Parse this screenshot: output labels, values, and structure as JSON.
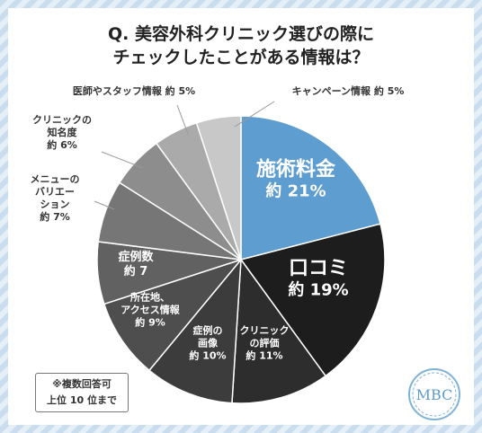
{
  "title_lines": [
    "Q. 美容外科クリニック選びの際に",
    "チェックしたことがある情報は？"
  ],
  "note_lines": [
    "※複数回答可",
    "上位 10 位まで"
  ],
  "logo_text": "MBC",
  "colors": {
    "accent": "#5d9dd0",
    "frame": "#c9ddef",
    "slices": [
      "#5d9dd0",
      "#1d1d1d",
      "#2d2d2d",
      "#3c3c3c",
      "#4e4e4e",
      "#616161",
      "#767676",
      "#8d8d8d",
      "#aaaaaa",
      "#c8c8c8",
      "#e3e3e3"
    ]
  },
  "chart_data": {
    "type": "pie",
    "start": "12 o'clock, clockwise",
    "slices": [
      {
        "label_lines": [
          "施術料金"
        ],
        "pct_text": "約 21%",
        "value": 21
      },
      {
        "label_lines": [
          "口コミ"
        ],
        "pct_text": "約 19%",
        "value": 19
      },
      {
        "label_lines": [
          "クリニック",
          "の評価"
        ],
        "pct_text": "約 11%",
        "value": 11
      },
      {
        "label_lines": [
          "症例の",
          "画像"
        ],
        "pct_text": "約 10%",
        "value": 10
      },
      {
        "label_lines": [
          "所在地、",
          "アクセス情報"
        ],
        "pct_text": "約 9%",
        "value": 9
      },
      {
        "label_lines": [
          "症例数"
        ],
        "pct_text": "約 7",
        "value": 7
      },
      {
        "label_lines": [
          "メニューの",
          "バリエー",
          "ション"
        ],
        "pct_text": "約 7%",
        "value": 7
      },
      {
        "label_lines": [
          "クリニックの",
          "知名度"
        ],
        "pct_text": "約 6%",
        "value": 6
      },
      {
        "label_lines": [
          "医師やスタッフ情報"
        ],
        "pct_text": "約 5%",
        "value": 5
      },
      {
        "label_lines": [
          "キャンペーン情報"
        ],
        "pct_text": "約 5%",
        "value": 5
      }
    ]
  }
}
